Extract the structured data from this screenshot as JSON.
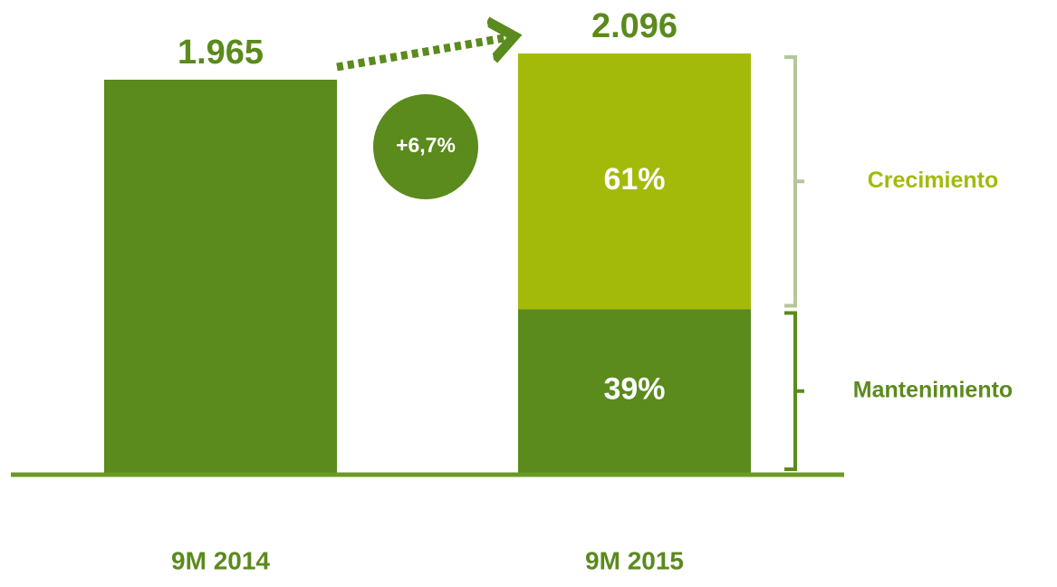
{
  "chart_data": {
    "type": "bar",
    "categories": [
      "9M 2014",
      "9M 2015"
    ],
    "values": [
      1965,
      2096
    ],
    "value_labels": [
      "1.965",
      "2.096"
    ],
    "color": "#5b8a1d",
    "ylim": [
      0,
      2300
    ],
    "series": [
      {
        "name": "Mantenimiento",
        "color": "#5b8a1d",
        "values": [
          null,
          39
        ],
        "value_labels": [
          null,
          "39%"
        ]
      },
      {
        "name": "Crecimiento",
        "color": "#a3ba0b",
        "values": [
          null,
          61
        ],
        "value_labels": [
          null,
          "61%"
        ]
      }
    ],
    "growth": 6.7,
    "growth_label": "+6,7%"
  }
}
